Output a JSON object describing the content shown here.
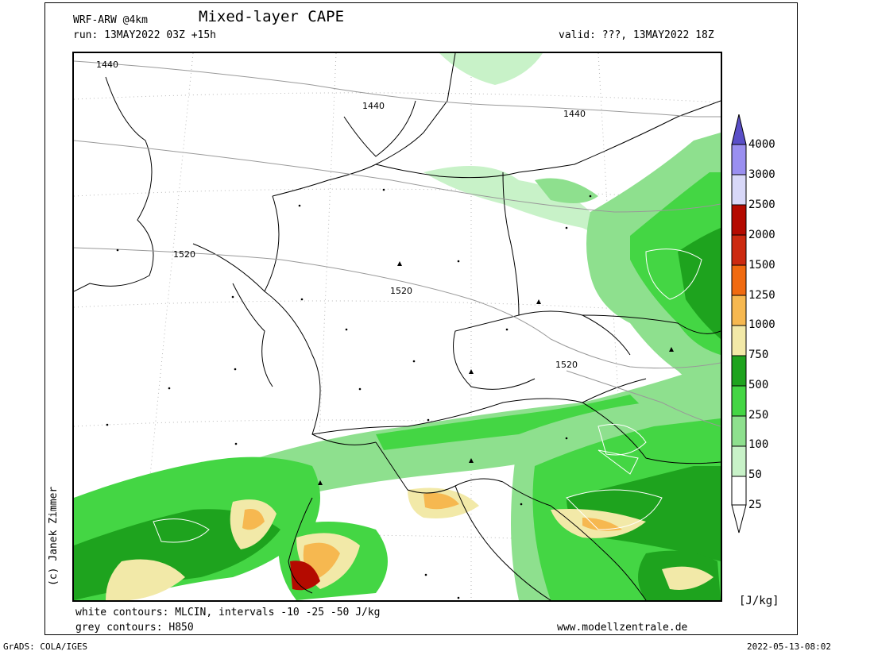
{
  "header": {
    "model": "WRF-ARW @4km",
    "title": "Mixed-layer CAPE",
    "run": "run: 13MAY2022 03Z +15h",
    "valid": "valid: ???, 13MAY2022 18Z"
  },
  "map": {
    "region": "Central Europe",
    "h850_contour_labels": [
      "1440",
      "1440",
      "1440",
      "1520",
      "1520",
      "1520"
    ]
  },
  "legend": {
    "unit": "[J/kg]",
    "levels": [
      "4000",
      "3000",
      "2500",
      "2000",
      "1500",
      "1250",
      "1000",
      "750",
      "500",
      "250",
      "100",
      "50",
      "25"
    ],
    "colors": {
      "c4000": "#5a4fc8",
      "c3000": "#9a8ff0",
      "c2500": "#d8d8f8",
      "c2000": "#b40a00",
      "c1500": "#cc2a10",
      "c1250": "#f06a10",
      "c1000": "#f6b850",
      "c750": "#f2e9a8",
      "c500": "#1ea31e",
      "c250": "#44d644",
      "c100": "#8ee08e",
      "c50": "#c8f2c8",
      "c25": "#ffffff"
    }
  },
  "notes": {
    "white_contours": "white contours: MLCIN, intervals -10 -25 -50 J/kg",
    "grey_contours": "grey contours: H850",
    "website": "www.modellzentrale.de"
  },
  "credit": "(c) Janek Zimmer",
  "footer": {
    "left": "GrADS: COLA/IGES",
    "right": "2022-05-13-08:02"
  }
}
